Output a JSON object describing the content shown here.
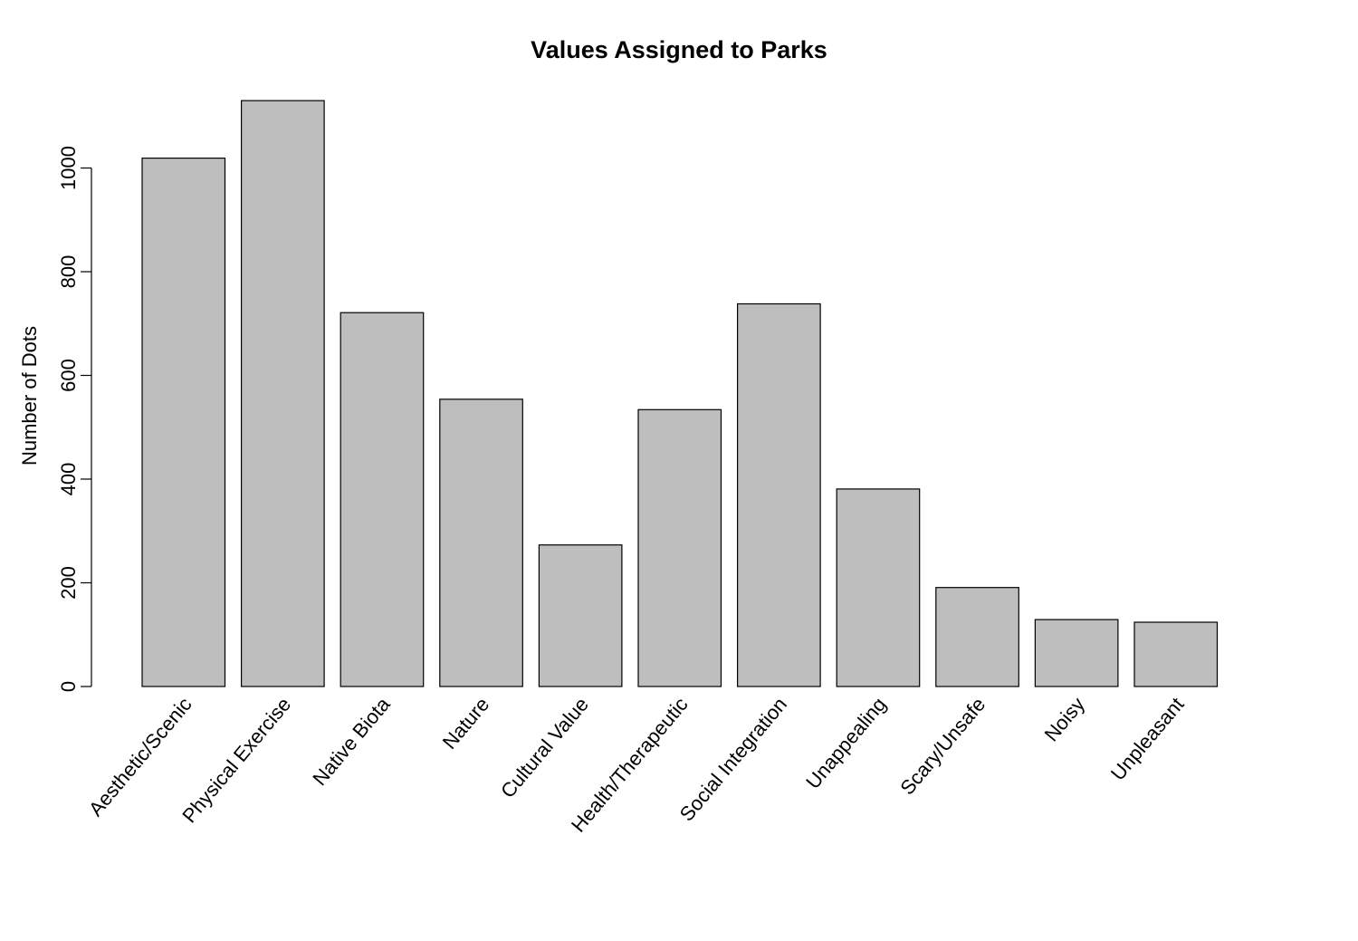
{
  "chart_data": {
    "type": "bar",
    "title": "Values Assigned to Parks",
    "xlabel": "",
    "ylabel": "Number of Dots",
    "categories": [
      "Aesthetic/Scenic",
      "Physical Exercise",
      "Native Biota",
      "Nature",
      "Cultural Value",
      "Health/Therapeutic",
      "Social Integration",
      "Unappealing",
      "Scary/Unsafe",
      "Noisy",
      "Unpleasant"
    ],
    "values": [
      1019,
      1130,
      721,
      554,
      273,
      534,
      738,
      381,
      191,
      129,
      124
    ],
    "ylim": [
      0,
      1130
    ],
    "yticks": [
      0,
      200,
      400,
      600,
      800,
      1000
    ],
    "grid": false,
    "legend": "none",
    "bar_color": "#bebebe",
    "edge_color": "#000000"
  }
}
